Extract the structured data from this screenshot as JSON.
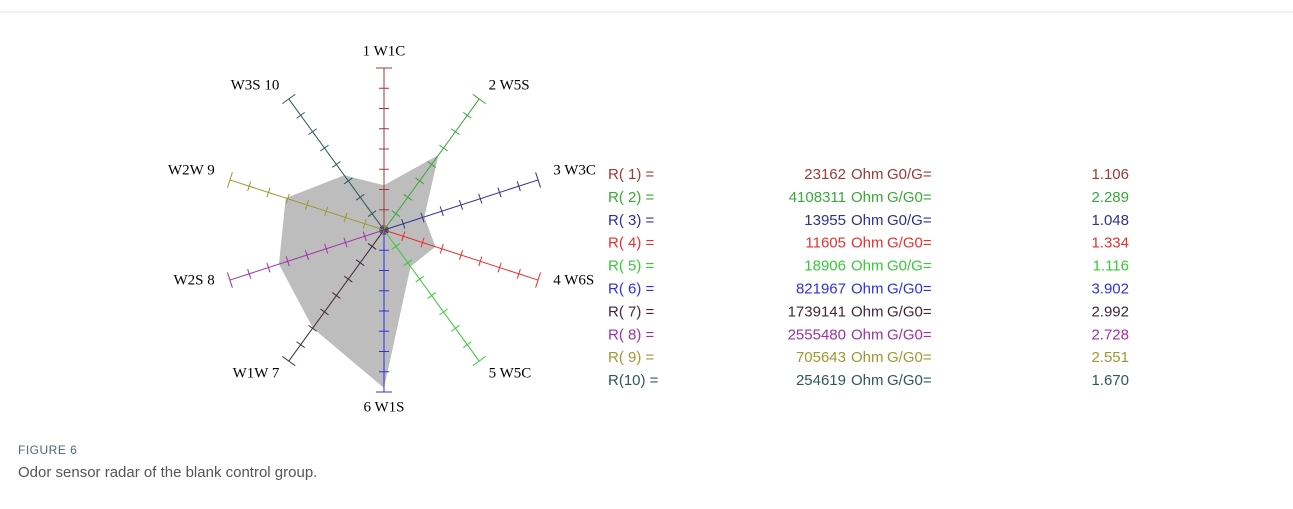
{
  "chart_data": {
    "type": "radar",
    "categories": [
      "1 W1C",
      "2 W5S",
      "3 W3C",
      "4 W6S",
      "5 W5C",
      "6 W1S",
      "W1W 7",
      "W2S 8",
      "W2W 9",
      "W3S 10"
    ],
    "values": [
      1.106,
      2.289,
      1.048,
      1.334,
      1.116,
      3.902,
      2.992,
      2.728,
      2.551,
      1.67
    ],
    "value_labels": [
      "1.106",
      "2.289",
      "1.048",
      "1.334",
      "1.116",
      "3.902",
      "2.992",
      "2.728",
      "2.551",
      "1.670"
    ],
    "colors": [
      "#a03838",
      "#38a838",
      "#303090",
      "#e83030",
      "#38c838",
      "#3030e0",
      "#402838",
      "#a030a8",
      "#9a9a30",
      "#305858"
    ],
    "fill": "#bdbdbd",
    "rlim": [
      0,
      4
    ],
    "rticks": [
      0,
      0.5,
      1,
      1.5,
      2,
      2.5,
      3,
      3.5,
      4
    ]
  },
  "table": {
    "rows": [
      [
        "R( 1) =",
        23162,
        "Ohm",
        "G0/G="
      ],
      [
        "R( 2) =",
        4108311,
        "Ohm",
        "G/G0="
      ],
      [
        "R( 3) =",
        13955,
        "Ohm",
        "G0/G="
      ],
      [
        "R( 4) =",
        11605,
        "Ohm",
        "G/G0="
      ],
      [
        "R( 5) =",
        18906,
        "Ohm",
        "G0/G="
      ],
      [
        "R( 6) =",
        821967,
        "Ohm",
        "G/G0="
      ],
      [
        "R( 7) =",
        1739141,
        "Ohm",
        "G/G0="
      ],
      [
        "R( 8) =",
        2555480,
        "Ohm",
        "G/G0="
      ],
      [
        "R( 9) =",
        705643,
        "Ohm",
        "G/G0="
      ],
      [
        "R(10) =",
        254619,
        "Ohm",
        "G/G0="
      ]
    ]
  },
  "caption": {
    "label": "FIGURE 6",
    "text": "Odor sensor radar of the blank control group."
  }
}
